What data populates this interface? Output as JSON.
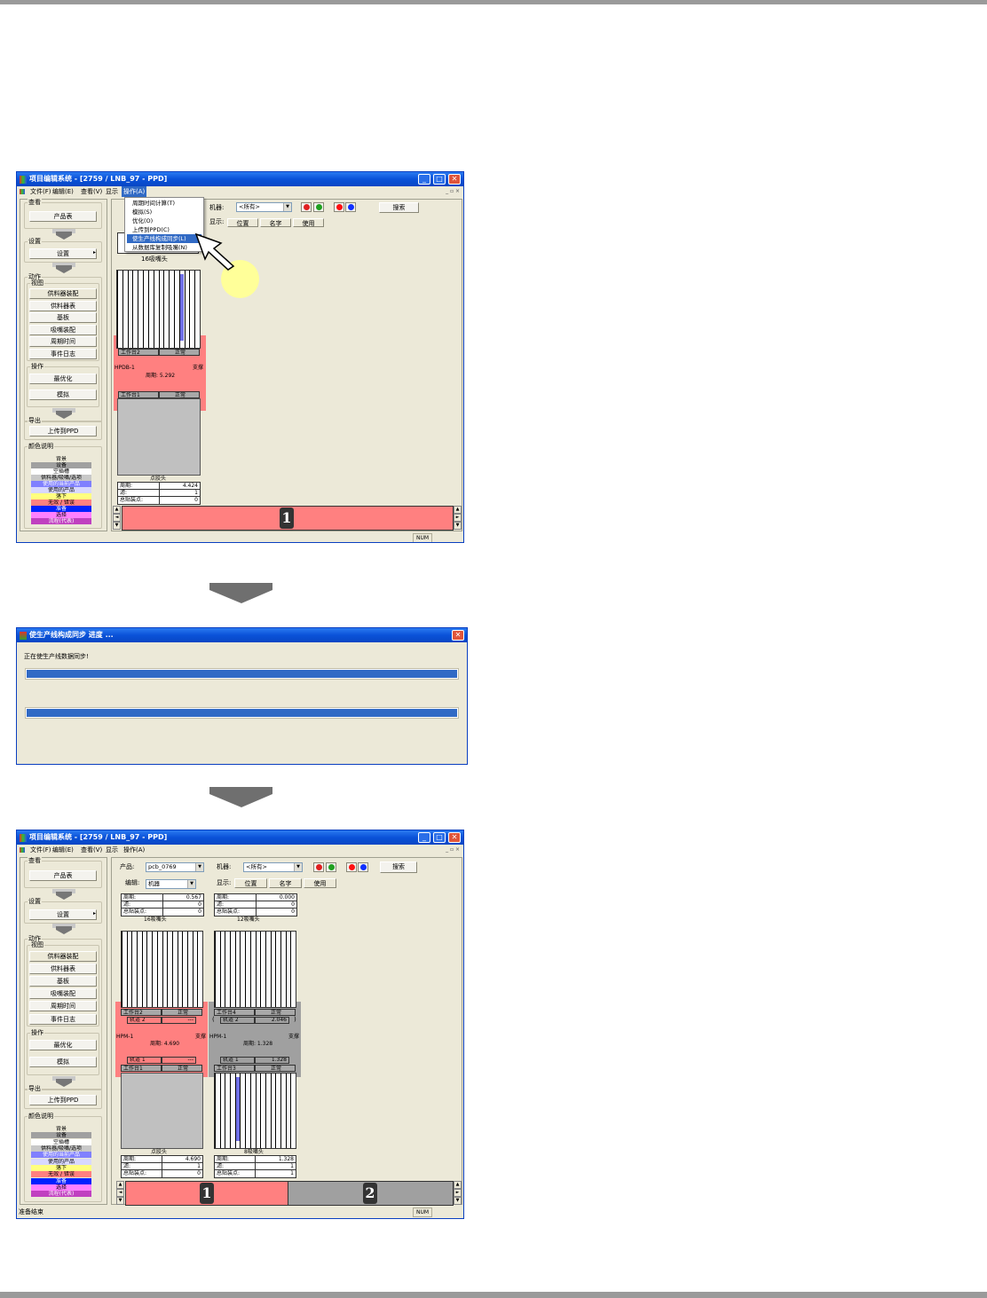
{
  "sidebar": {
    "view_group": "查看",
    "product_table": "产品表",
    "settings_group": "设置",
    "settings_button": "设置",
    "action_group": "动作",
    "view_sub": "视图",
    "view_buttons": [
      "供料器装配",
      "供料器表",
      "基板",
      "吸嘴装配",
      "周期时间",
      "事件日志"
    ],
    "operate_group": "操作",
    "operate_buttons": [
      "最优化",
      "模拟"
    ],
    "export_group": "导出",
    "export_button": "上传到PPD",
    "legend_title": "颜色说明",
    "legend": [
      {
        "label": "背景",
        "color": "#ece9d8"
      },
      {
        "label": "设备",
        "color": "#a0a0a0"
      },
      {
        "label": "空插槽",
        "color": "#ffffff"
      },
      {
        "label": "供料器/吸嘴/选项",
        "color": "#c8c8c8"
      },
      {
        "label": "使用的当前产品",
        "color": "#8080ff"
      },
      {
        "label": "使用的产品",
        "color": "#d8d8ff"
      },
      {
        "label": "落下",
        "color": "#ffff80"
      },
      {
        "label": "无效 / 错误",
        "color": "#ff8080"
      },
      {
        "label": "准备",
        "color": "#0020ff"
      },
      {
        "label": "选择",
        "color": "#ff80ff"
      },
      {
        "label": "流程(代表)",
        "color": "#c040c0"
      }
    ]
  },
  "toolbar": {
    "product_label": "产品:",
    "product_value": "pcb_0769",
    "machine_label": "机器:",
    "machine_value": "<所有>",
    "edit_label": "编辑:",
    "edit_value": "机器",
    "search_button": "搜索",
    "display_label": "显示:",
    "display_buttons": [
      "位置",
      "名字",
      "使用"
    ]
  },
  "window1": {
    "title": "项目编辑系统 - [2759 / LNB_97 - PPD]",
    "menu": [
      "文件(F)",
      "编辑(E)",
      "查看(V)",
      "显示",
      "操作(A)"
    ],
    "active_menu": 4,
    "dropdown": [
      "周期时间计算(T)",
      "模拟(S)",
      "优化(O)",
      "上传到PPD(C)",
      "使生产线构成同步(L)",
      "从数据库复制吸嘴(N)"
    ],
    "dropdown_highlight": 4,
    "head_label": "16吸嘴头",
    "machine": {
      "name": "HPDB-1",
      "support": "支撑",
      "cycle": "周期: 5.292",
      "stage_top": [
        "工作台2",
        "正常"
      ],
      "stage_bottom": [
        "工作台1",
        "正常"
      ]
    },
    "dispense_label": "点胶头",
    "dispense_table": [
      [
        "周期:",
        "4.424"
      ],
      [
        "滤:",
        "1"
      ],
      [
        "总贴装点:",
        "0"
      ]
    ],
    "strip_machine": "1",
    "status_indicator": "NUM"
  },
  "dialog": {
    "title": "使生产线构成同步 进度 ...",
    "message": "正在使生产线数据同步!",
    "progress": [
      100,
      100
    ]
  },
  "window3": {
    "title": "项目编辑系统 - [2759 / LNB_97 - PPD]",
    "menu": [
      "文件(F)",
      "编辑(E)",
      "查看(V)",
      "显示",
      "操作(A)"
    ],
    "summary": [
      {
        "label": "16吸嘴头",
        "rows": [
          [
            "周期:",
            "0.567"
          ],
          [
            "滤:",
            "0"
          ],
          [
            "总贴装点:",
            "0"
          ]
        ]
      },
      {
        "label": "12吸嘴头",
        "rows": [
          [
            "周期:",
            "0.000"
          ],
          [
            "滤:",
            "0"
          ],
          [
            "总贴装点:",
            "0"
          ]
        ]
      }
    ],
    "machines": [
      {
        "name": "HPM-1",
        "support": "支撑",
        "cycle": "周期: 4.690",
        "stage_top": [
          "工作台2",
          "正常"
        ],
        "track_top": [
          "轨道 2",
          "---"
        ],
        "track_bottom": [
          "轨道 1",
          "---"
        ],
        "stage_bottom": [
          "工作台1",
          "正常"
        ],
        "bottom_label": "点胶头",
        "bottom_table": [
          [
            "周期:",
            "4.690"
          ],
          [
            "滤:",
            "1"
          ],
          [
            "总贴装点:",
            "0"
          ]
        ],
        "zone_color": "#ff8080"
      },
      {
        "name": "HPM-1",
        "support": "支撑",
        "cycle": "周期: 1.328",
        "stage_top": [
          "工作台4",
          "正常"
        ],
        "track_top": [
          "轨道 2",
          "2.046"
        ],
        "track_bottom": [
          "轨道 1",
          "1.328"
        ],
        "stage_bottom": [
          "工作台3",
          "正常"
        ],
        "bottom_label": "8吸嘴头",
        "bottom_table": [
          [
            "周期:",
            "1.328"
          ],
          [
            "滤:",
            "1"
          ],
          [
            "总贴装点:",
            "1"
          ]
        ],
        "zone_color": "#a0a0a0"
      }
    ],
    "strip_machines": [
      "1",
      "2"
    ],
    "status_text": "准备结束",
    "status_indicator": "NUM"
  },
  "colors": {
    "title_bar": "#0a52d8",
    "error": "#ff8080",
    "equipment": "#a0a0a0",
    "progress": "#316ac5",
    "highlight_circle": "#ffff99"
  }
}
